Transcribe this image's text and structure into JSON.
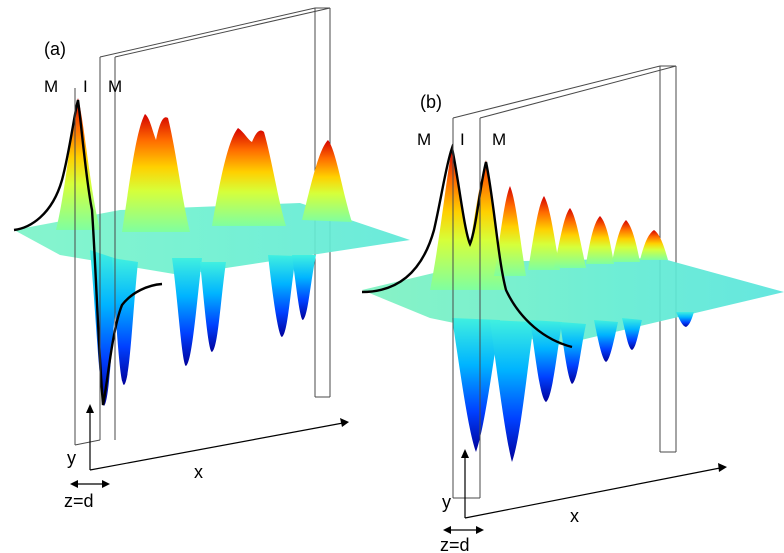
{
  "panels": [
    {
      "label": "(a)",
      "regions": [
        "M",
        "I",
        "M"
      ],
      "axes": {
        "x": "x",
        "y": "y",
        "z": "z=d"
      }
    },
    {
      "label": "(b)",
      "regions": [
        "M",
        "I",
        "M"
      ],
      "axes": {
        "x": "x",
        "y": "y",
        "z": "z=d"
      }
    }
  ],
  "colors": {
    "colormap": [
      "#00008f",
      "#0000ff",
      "#00a0ff",
      "#00ffff",
      "#80ff80",
      "#ffff00",
      "#ff8000",
      "#ff0000",
      "#8f0000"
    ],
    "box_line": "#4a4a4a",
    "profile_curve": "#000000"
  }
}
